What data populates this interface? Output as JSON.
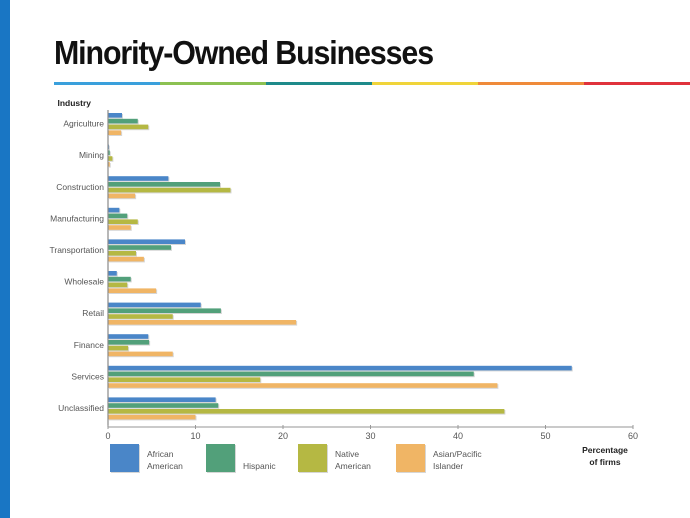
{
  "title": "Minority-Owned Businesses",
  "colors": {
    "side_bar": "#1976c4",
    "rule": [
      "#3aa0dc",
      "#8cc152",
      "#1e8a8a",
      "#f0d43a",
      "#ef8a3a",
      "#e0323c"
    ]
  },
  "chart_data": {
    "type": "bar",
    "orientation": "horizontal",
    "title": "Minority-Owned Businesses",
    "ylabel": "Industry",
    "xlabel": "Percentage of firms",
    "xlabel_lines": [
      "Percentage",
      "of firms"
    ],
    "xlim": [
      0,
      60
    ],
    "xticks": [
      0,
      10,
      20,
      30,
      40,
      50,
      60
    ],
    "categories": [
      "Agriculture",
      "Mining",
      "Construction",
      "Manufacturing",
      "Transportation",
      "Wholesale",
      "Retail",
      "Finance",
      "Services",
      "Unclassified"
    ],
    "series": [
      {
        "name": "African American",
        "label_lines": [
          "African",
          "American"
        ],
        "color": "#4a86c8",
        "values": [
          1.6,
          0.1,
          6.9,
          1.3,
          8.8,
          1.0,
          10.6,
          4.6,
          53.0,
          12.3
        ]
      },
      {
        "name": "Hispanic",
        "label_lines": [
          "",
          "Hispanic"
        ],
        "color": "#52a07a",
        "values": [
          3.4,
          0.2,
          12.8,
          2.2,
          7.2,
          2.6,
          12.9,
          4.7,
          41.8,
          12.6
        ]
      },
      {
        "name": "Native American",
        "label_lines": [
          "Native",
          "American"
        ],
        "color": "#b5b843",
        "values": [
          4.6,
          0.5,
          14.0,
          3.4,
          3.2,
          2.2,
          7.4,
          2.3,
          17.4,
          45.3
        ]
      },
      {
        "name": "Asian/Pacific Islander",
        "label_lines": [
          "Asian/Pacific",
          "Islander"
        ],
        "color": "#f0b565",
        "values": [
          1.5,
          0.2,
          3.1,
          2.6,
          4.1,
          5.5,
          21.5,
          7.4,
          44.5,
          10.0
        ]
      }
    ],
    "legend_position": "bottom",
    "grid": false
  }
}
